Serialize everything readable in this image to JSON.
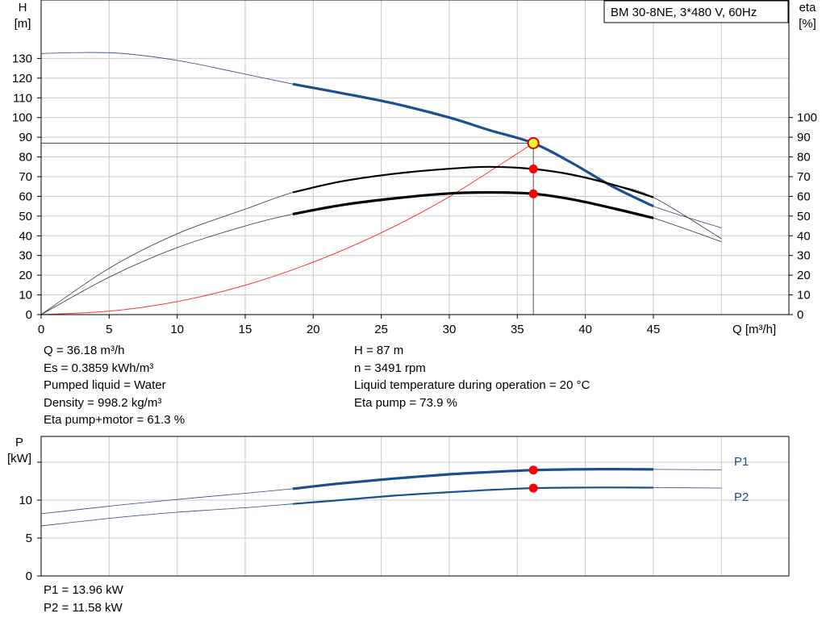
{
  "chart_data": [
    {
      "type": "line",
      "title": "BM 30-8NE, 3*480 V, 60Hz",
      "xlabel": "Q [m³/h]",
      "ylabel_left": [
        "H",
        "[m]"
      ],
      "ylabel_right": [
        "eta",
        "[%]"
      ],
      "xlim": [
        0,
        50
      ],
      "ylim": [
        0,
        140
      ],
      "xticks": [
        0,
        5,
        10,
        15,
        20,
        25,
        30,
        35,
        40,
        45
      ],
      "yticks_left": [
        0,
        10,
        20,
        30,
        40,
        50,
        60,
        70,
        80,
        90,
        100,
        110,
        120,
        130
      ],
      "yticks_right": [
        0,
        10,
        20,
        30,
        40,
        50,
        60,
        70,
        80,
        90,
        100
      ],
      "grid": true,
      "series": [
        {
          "name": "H",
          "color": "#1a5090",
          "x": [
            0,
            3,
            6,
            10,
            14,
            18.5,
            22,
            26,
            30,
            33,
            36.18,
            39,
            42,
            45,
            50
          ],
          "y": [
            132.5,
            133,
            132.5,
            129,
            123.5,
            117,
            112.5,
            107,
            100,
            93.5,
            87,
            77,
            65,
            55,
            44
          ]
        },
        {
          "name": "Eta pump",
          "color": "#000000",
          "x": [
            0,
            5,
            10,
            15,
            18.5,
            22,
            26,
            30,
            33,
            36.18,
            39,
            42,
            45,
            50
          ],
          "y": [
            0,
            23.5,
            41,
            53.5,
            62,
            67.5,
            71.5,
            74,
            75,
            73.9,
            71,
            66,
            59.5,
            38.5
          ]
        },
        {
          "name": "Eta pump+motor",
          "color": "#000000",
          "x": [
            0,
            5,
            10,
            15,
            18.5,
            22,
            26,
            30,
            33,
            36.18,
            39,
            42,
            45,
            50
          ],
          "y": [
            0,
            19,
            34,
            45,
            51,
            55.5,
            59,
            61.5,
            62,
            61.3,
            58.5,
            54,
            49,
            37
          ]
        },
        {
          "name": "System curve",
          "color": "#ff3030",
          "x": [
            0,
            5,
            10,
            15,
            20,
            25,
            30,
            36.18
          ],
          "y": [
            0,
            1.7,
            6.6,
            14.9,
            26.6,
            41.5,
            59.8,
            87
          ]
        }
      ],
      "duty_point": {
        "x": 36.18,
        "y": 87
      }
    },
    {
      "type": "line",
      "ylabel": [
        "P",
        "[kW]"
      ],
      "xlim": [
        0,
        50
      ],
      "ylim": [
        0,
        16
      ],
      "yticks": [
        0,
        5,
        10
      ],
      "grid": true,
      "series": [
        {
          "name": "P1",
          "color": "#1a5090",
          "x": [
            0,
            5,
            10,
            15,
            18.5,
            22,
            26,
            30,
            33,
            36.18,
            39,
            42,
            45,
            50
          ],
          "y": [
            8.2,
            9.2,
            10.1,
            10.9,
            11.5,
            12.2,
            12.85,
            13.4,
            13.7,
            13.96,
            14.05,
            14.08,
            14.05,
            14.0
          ]
        },
        {
          "name": "P2",
          "color": "#1a5090",
          "x": [
            0,
            5,
            10,
            15,
            18.5,
            22,
            26,
            30,
            33,
            36.18,
            39,
            42,
            45,
            50
          ],
          "y": [
            6.6,
            7.6,
            8.4,
            9.0,
            9.5,
            10.0,
            10.6,
            11.05,
            11.35,
            11.58,
            11.65,
            11.67,
            11.65,
            11.6
          ]
        }
      ],
      "duty_point": {
        "x": 36.18,
        "p1": 13.96,
        "p2": 11.58
      }
    }
  ],
  "info_left": [
    "Q = 36.18 m³/h",
    "Es = 0.3859 kWh/m³",
    "Pumped liquid = Water",
    "Density = 998.2 kg/m³",
    "Eta pump+motor = 61.3 %"
  ],
  "info_right": [
    "H = 87 m",
    "n = 3491 rpm",
    "Liquid temperature during operation = 20 °C",
    "Eta pump = 73.9 %"
  ],
  "power_info": [
    "P1 = 13.96 kW",
    "P2 = 11.58 kW"
  ],
  "colors": {
    "curve_blue": "#1a5090",
    "duty_red": "#ff0000",
    "duty_yellow": "#ffff33",
    "system_red": "#ff3030",
    "grid": "#c8c8c8"
  }
}
